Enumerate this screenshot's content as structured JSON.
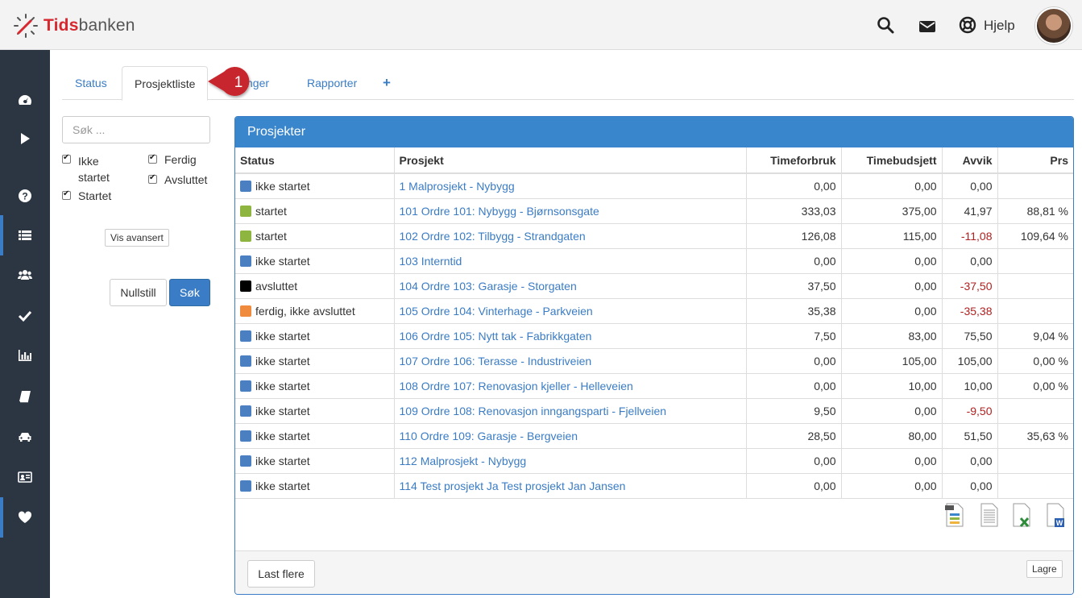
{
  "app": {
    "logo_red": "Tids",
    "logo_grey": "banken"
  },
  "header": {
    "help_label": "Hjelp",
    "icons": [
      "search-icon",
      "envelope-icon",
      "lifebuoy-icon",
      "avatar"
    ]
  },
  "sidebar": {
    "items": [
      "dashboard-icon",
      "play-icon",
      "question-icon",
      "list-icon",
      "users-icon",
      "check-icon",
      "bar-chart-icon",
      "book-icon",
      "car-icon",
      "id-card-icon",
      "heart-icon"
    ],
    "active": [
      "list-icon",
      "heart-icon"
    ]
  },
  "tabs": [
    {
      "label": "Status",
      "active": false
    },
    {
      "label": "Prosjektliste",
      "active": true
    },
    {
      "label": "nger",
      "active": false
    },
    {
      "label": "Rapporter",
      "active": false
    },
    {
      "label": "+",
      "active": false
    }
  ],
  "callout": {
    "number": "1"
  },
  "filter": {
    "search_placeholder": "Søk ...",
    "checkboxes": [
      {
        "label": "Ikke startet",
        "checked": true
      },
      {
        "label": "Startet",
        "checked": true
      },
      {
        "label": "Ferdig",
        "checked": true
      },
      {
        "label": "Avsluttet",
        "checked": true
      }
    ],
    "advanced_label": "Vis avansert",
    "reset_label": "Nullstill",
    "search_label": "Søk"
  },
  "panel": {
    "title": "Prosjekter",
    "columns": [
      "Status",
      "Prosjekt",
      "Timeforbruk",
      "Timebudsjett",
      "Avvik",
      "Prs"
    ],
    "rows": [
      {
        "color": "#4a7fc1",
        "status": "ikke startet",
        "project": "1 Malprosjekt - Nybygg",
        "timeforbruk": "0,00",
        "timebudsjett": "0,00",
        "avvik": "0,00",
        "neg": false,
        "prs": ""
      },
      {
        "color": "#8db53f",
        "status": "startet",
        "project": "101 Ordre 101: Nybygg - Bjørnsonsgate",
        "timeforbruk": "333,03",
        "timebudsjett": "375,00",
        "avvik": "41,97",
        "neg": false,
        "prs": "88,81 %"
      },
      {
        "color": "#8db53f",
        "status": "startet",
        "project": "102 Ordre 102: Tilbygg - Strandgaten",
        "timeforbruk": "126,08",
        "timebudsjett": "115,00",
        "avvik": "-11,08",
        "neg": true,
        "prs": "109,64 %"
      },
      {
        "color": "#4a7fc1",
        "status": "ikke startet",
        "project": "103 Interntid",
        "timeforbruk": "0,00",
        "timebudsjett": "0,00",
        "avvik": "0,00",
        "neg": false,
        "prs": ""
      },
      {
        "color": "#000000",
        "status": "avsluttet",
        "project": "104 Ordre 103: Garasje - Storgaten",
        "timeforbruk": "37,50",
        "timebudsjett": "0,00",
        "avvik": "-37,50",
        "neg": true,
        "prs": ""
      },
      {
        "color": "#f08a3c",
        "status": "ferdig, ikke avsluttet",
        "project": "105 Ordre 104: Vinterhage - Parkveien",
        "timeforbruk": "35,38",
        "timebudsjett": "0,00",
        "avvik": "-35,38",
        "neg": true,
        "prs": ""
      },
      {
        "color": "#4a7fc1",
        "status": "ikke startet",
        "project": "106 Ordre 105: Nytt tak - Fabrikkgaten",
        "timeforbruk": "7,50",
        "timebudsjett": "83,00",
        "avvik": "75,50",
        "neg": false,
        "prs": "9,04 %"
      },
      {
        "color": "#4a7fc1",
        "status": "ikke startet",
        "project": "107 Ordre 106: Terasse - Industriveien",
        "timeforbruk": "0,00",
        "timebudsjett": "105,00",
        "avvik": "105,00",
        "neg": false,
        "prs": "0,00 %"
      },
      {
        "color": "#4a7fc1",
        "status": "ikke startet",
        "project": "108 Ordre 107: Renovasjon kjeller - Helleveien",
        "timeforbruk": "0,00",
        "timebudsjett": "10,00",
        "avvik": "10,00",
        "neg": false,
        "prs": "0,00 %"
      },
      {
        "color": "#4a7fc1",
        "status": "ikke startet",
        "project": "109 Ordre 108: Renovasjon inngangsparti - Fjellveien",
        "timeforbruk": "9,50",
        "timebudsjett": "0,00",
        "avvik": "-9,50",
        "neg": true,
        "prs": ""
      },
      {
        "color": "#4a7fc1",
        "status": "ikke startet",
        "project": "110 Ordre 109: Garasje - Bergveien",
        "timeforbruk": "28,50",
        "timebudsjett": "80,00",
        "avvik": "51,50",
        "neg": false,
        "prs": "35,63 %"
      },
      {
        "color": "#4a7fc1",
        "status": "ikke startet",
        "project": "112 Malprosjekt - Nybygg",
        "timeforbruk": "0,00",
        "timebudsjett": "0,00",
        "avvik": "0,00",
        "neg": false,
        "prs": ""
      },
      {
        "color": "#4a7fc1",
        "status": "ikke startet",
        "project": "114 Test prosjekt Ja Test prosjekt Jan Jansen",
        "timeforbruk": "0,00",
        "timebudsjett": "0,00",
        "avvik": "0,00",
        "neg": false,
        "prs": ""
      }
    ],
    "export_icons": [
      "pdf-export-icon",
      "text-export-icon",
      "excel-export-icon",
      "word-export-icon"
    ],
    "load_more_label": "Last flere",
    "save_label": "Lagre"
  },
  "colors": {
    "accent": "#3a7cc5",
    "sidebar": "#2b3642",
    "negative": "#b32020",
    "callout": "#c8282e"
  }
}
